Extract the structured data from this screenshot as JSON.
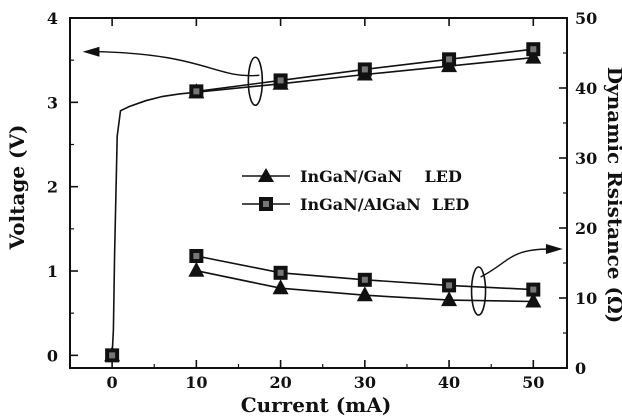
{
  "chart_data": {
    "type": "line",
    "xlabel": "Current (mA)",
    "ylabel_left": "Voltage (V)",
    "ylabel_right": "Dynamic Rsistance (Ω)",
    "xlim": [
      -5,
      54
    ],
    "ylim_left": [
      -0.15,
      4.0
    ],
    "ylim_right": [
      0,
      50
    ],
    "x_ticks": [
      0,
      10,
      20,
      30,
      40,
      50
    ],
    "y_left_ticks": [
      0,
      1,
      2,
      3,
      4
    ],
    "y_right_ticks": [
      0,
      10,
      20,
      30,
      40,
      50
    ],
    "legend_position": "center-right",
    "series": [
      {
        "name": "InGaN/GaN    LED",
        "marker": "triangle",
        "axis": "left",
        "x": [
          0,
          10,
          20,
          30,
          40,
          50
        ],
        "y": [
          0,
          3.12,
          3.22,
          3.33,
          3.43,
          3.53
        ]
      },
      {
        "name": "InGaN/AlGaN  LED",
        "marker": "square",
        "axis": "left",
        "x": [
          0,
          10,
          20,
          30,
          40,
          50
        ],
        "y": [
          0,
          3.13,
          3.26,
          3.39,
          3.51,
          3.63
        ]
      },
      {
        "name": "InGaN/GaN    LED",
        "marker": "triangle",
        "axis": "right",
        "x": [
          10,
          20,
          30,
          40,
          50
        ],
        "y": [
          13.9,
          11.4,
          10.4,
          9.7,
          9.5
        ]
      },
      {
        "name": "InGaN/AlGaN  LED",
        "marker": "square",
        "axis": "right",
        "x": [
          10,
          20,
          30,
          40,
          50
        ],
        "y": [
          16.0,
          13.6,
          12.6,
          11.8,
          11.2
        ]
      }
    ],
    "iv_curve": {
      "x": [
        0,
        0.15,
        0.3,
        0.6,
        1,
        2,
        4,
        6,
        8,
        10
      ],
      "y": [
        0,
        0.3,
        1.2,
        2.6,
        2.9,
        2.95,
        3.02,
        3.07,
        3.1,
        3.12
      ]
    }
  }
}
